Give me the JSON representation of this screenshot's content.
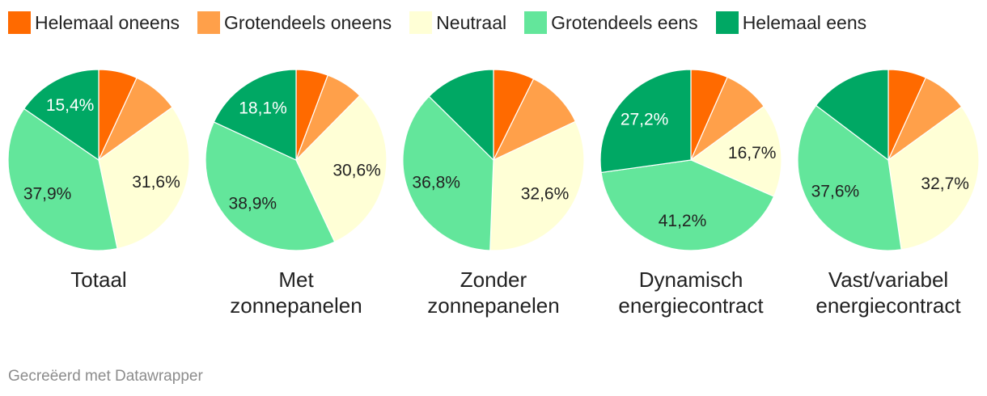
{
  "legend": [
    {
      "label": "Helemaal oneens",
      "color": "#ff6a00"
    },
    {
      "label": "Grotendeels oneens",
      "color": "#ffa04a"
    },
    {
      "label": "Neutraal",
      "color": "#ffffd6"
    },
    {
      "label": "Grotendeels eens",
      "color": "#63e69b"
    },
    {
      "label": "Helemaal eens",
      "color": "#00a864"
    }
  ],
  "chart_data": [
    {
      "type": "pie",
      "title": [
        "Totaal"
      ],
      "slices": [
        {
          "name": "Helemaal oneens",
          "value": 6.9,
          "label": ""
        },
        {
          "name": "Grotendeels oneens",
          "value": 8.2,
          "label": ""
        },
        {
          "name": "Neutraal",
          "value": 31.6,
          "label": "31,6%"
        },
        {
          "name": "Grotendeels eens",
          "value": 37.9,
          "label": "37,9%"
        },
        {
          "name": "Helemaal eens",
          "value": 15.4,
          "label": "15,4%"
        }
      ]
    },
    {
      "type": "pie",
      "title": [
        "Met",
        "zonnepanelen"
      ],
      "slices": [
        {
          "name": "Helemaal oneens",
          "value": 5.7,
          "label": ""
        },
        {
          "name": "Grotendeels oneens",
          "value": 6.7,
          "label": ""
        },
        {
          "name": "Neutraal",
          "value": 30.6,
          "label": "30,6%"
        },
        {
          "name": "Grotendeels eens",
          "value": 38.9,
          "label": "38,9%"
        },
        {
          "name": "Helemaal eens",
          "value": 18.1,
          "label": "18,1%"
        }
      ]
    },
    {
      "type": "pie",
      "title": [
        "Zonder",
        "zonnepanelen"
      ],
      "slices": [
        {
          "name": "Helemaal oneens",
          "value": 7.3,
          "label": ""
        },
        {
          "name": "Grotendeels oneens",
          "value": 10.7,
          "label": ""
        },
        {
          "name": "Neutraal",
          "value": 32.6,
          "label": "32,6%"
        },
        {
          "name": "Grotendeels eens",
          "value": 36.8,
          "label": "36,8%"
        },
        {
          "name": "Helemaal eens",
          "value": 12.6,
          "label": ""
        }
      ]
    },
    {
      "type": "pie",
      "title": [
        "Dynamisch",
        "energiecontract"
      ],
      "slices": [
        {
          "name": "Helemaal oneens",
          "value": 6.6,
          "label": ""
        },
        {
          "name": "Grotendeels oneens",
          "value": 8.3,
          "label": ""
        },
        {
          "name": "Neutraal",
          "value": 16.7,
          "label": "16,7%"
        },
        {
          "name": "Grotendeels eens",
          "value": 41.2,
          "label": "41,2%"
        },
        {
          "name": "Helemaal eens",
          "value": 27.2,
          "label": "27,2%"
        }
      ]
    },
    {
      "type": "pie",
      "title": [
        "Vast/variabel",
        "energiecontract"
      ],
      "slices": [
        {
          "name": "Helemaal oneens",
          "value": 6.8,
          "label": ""
        },
        {
          "name": "Grotendeels oneens",
          "value": 8.2,
          "label": ""
        },
        {
          "name": "Neutraal",
          "value": 32.7,
          "label": "32,7%"
        },
        {
          "name": "Grotendeels eens",
          "value": 37.6,
          "label": "37,6%"
        },
        {
          "name": "Helemaal eens",
          "value": 14.7,
          "label": ""
        }
      ]
    }
  ],
  "footer": "Gecreëerd met Datawrapper"
}
